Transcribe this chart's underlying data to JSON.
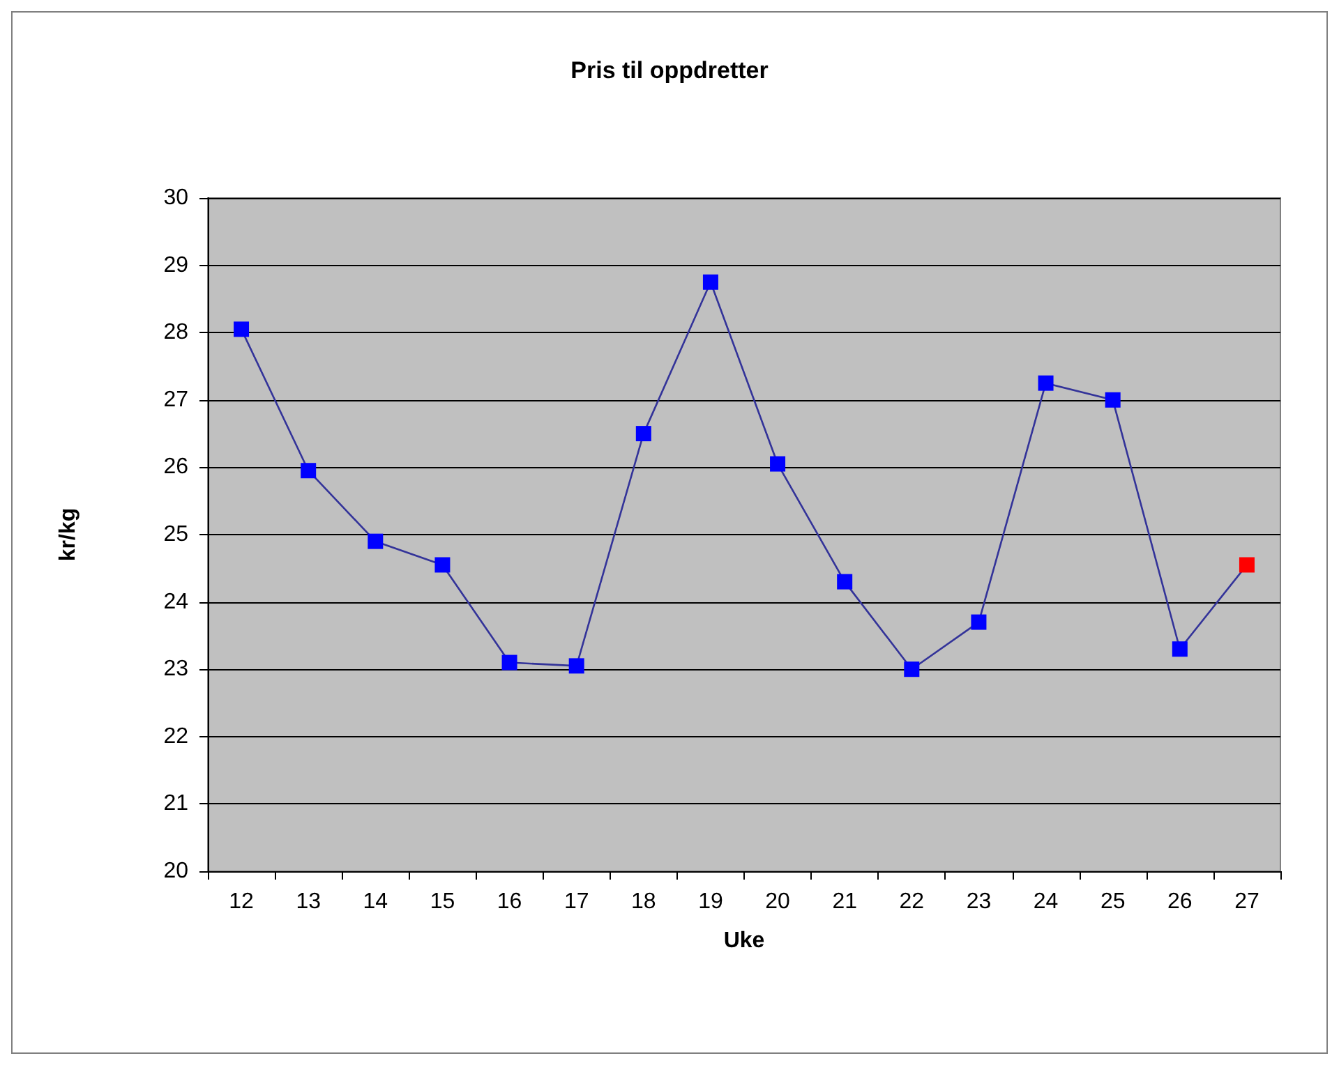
{
  "chart_data": {
    "type": "line",
    "title": "Pris til oppdretter",
    "xlabel": "Uke",
    "ylabel": "kr/kg",
    "categories": [
      "12",
      "13",
      "14",
      "15",
      "16",
      "17",
      "18",
      "19",
      "20",
      "21",
      "22",
      "23",
      "24",
      "25",
      "26",
      "27"
    ],
    "series": [
      {
        "color": "#333399",
        "values": [
          28.05,
          25.95,
          24.9,
          24.55,
          23.1,
          23.05,
          26.5,
          28.75,
          26.05,
          24.3,
          23.0,
          23.7,
          27.25,
          27.0,
          23.3,
          24.55
        ],
        "colors": [
          "#0000ff",
          "#0000ff",
          "#0000ff",
          "#0000ff",
          "#0000ff",
          "#0000ff",
          "#0000ff",
          "#0000ff",
          "#0000ff",
          "#0000ff",
          "#0000ff",
          "#0000ff",
          "#0000ff",
          "#0000ff",
          "#0000ff",
          "#ff0000"
        ]
      }
    ],
    "ylim": [
      20,
      30
    ],
    "yticks": [
      20,
      21,
      22,
      23,
      24,
      25,
      26,
      27,
      28,
      29,
      30
    ],
    "grid": "y",
    "marker": "square",
    "line_style": "solid"
  }
}
